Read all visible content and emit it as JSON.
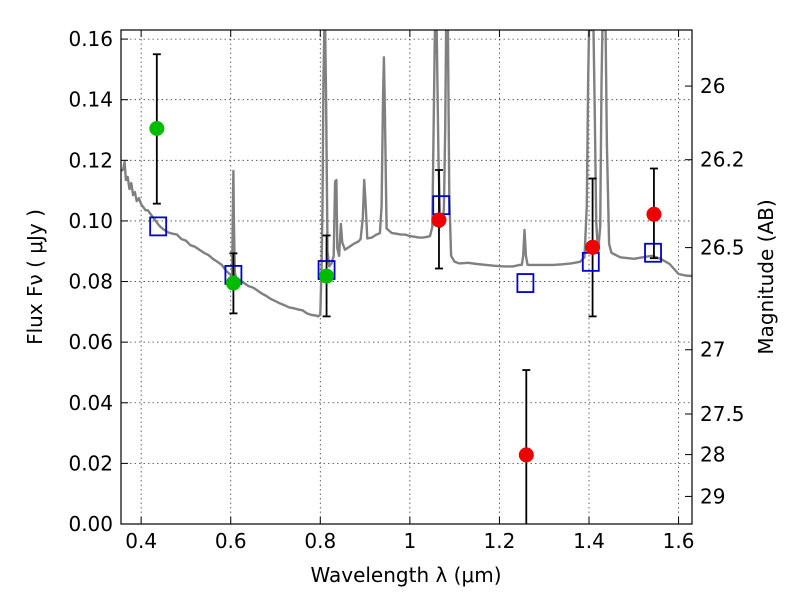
{
  "chart_data": {
    "type": "scatter",
    "title": "",
    "xlabel": "Wavelength  λ (μm)",
    "ylabel": "Flux  Fν  ( μJy )",
    "y2label": "Magnitude (AB)",
    "xlim": [
      0.355,
      1.63
    ],
    "ylim": [
      0.0,
      0.163
    ],
    "grid": true,
    "legend": "none",
    "x_ticks": [
      0.4,
      0.6,
      0.8,
      1.0,
      1.2,
      1.4,
      1.6
    ],
    "x_tick_labels": [
      "0.4",
      "0.6",
      "0.8",
      "1",
      "1.2",
      "1.4",
      "1.6"
    ],
    "y_ticks": [
      0.0,
      0.02,
      0.04,
      0.06,
      0.08,
      0.1,
      0.12,
      0.14,
      0.16
    ],
    "y_tick_labels": [
      "0.00",
      "0.02",
      "0.04",
      "0.06",
      "0.08",
      "0.10",
      "0.12",
      "0.14",
      "0.16"
    ],
    "y2_ticks": [
      {
        "label": "26",
        "flux": 0.1445
      },
      {
        "label": "26.2",
        "flux": 0.1202
      },
      {
        "label": "26.5",
        "flux": 0.0912
      },
      {
        "label": "27",
        "flux": 0.0575
      },
      {
        "label": "27.5",
        "flux": 0.0363
      },
      {
        "label": "28",
        "flux": 0.0229
      },
      {
        "label": "29",
        "flux": 0.0091
      }
    ],
    "colors": {
      "green": "#00bb00",
      "red": "#ee0000",
      "blue": "#0000cc",
      "model": "#808080",
      "errorbar": "#000000"
    },
    "series": [
      {
        "marker": "circle",
        "color": "green",
        "points": [
          {
            "x": 0.435,
            "y": 0.1305,
            "yerr_low": 0.1057,
            "yerr_high": 0.155
          },
          {
            "x": 0.606,
            "y": 0.0795,
            "yerr_low": 0.0695,
            "yerr_high": 0.0893
          },
          {
            "x": 0.814,
            "y": 0.0818,
            "yerr_low": 0.0685,
            "yerr_high": 0.0952
          }
        ]
      },
      {
        "marker": "circle",
        "color": "red",
        "points": [
          {
            "x": 1.065,
            "y": 0.1003,
            "yerr_low": 0.0843,
            "yerr_high": 0.1168
          },
          {
            "x": 1.26,
            "y": 0.0228,
            "yerr_low": 0.0,
            "yerr_high": 0.0508
          },
          {
            "x": 1.408,
            "y": 0.0913,
            "yerr_low": 0.0685,
            "yerr_high": 0.114
          },
          {
            "x": 1.545,
            "y": 0.1022,
            "yerr_low": 0.0877,
            "yerr_high": 0.1173
          }
        ]
      },
      {
        "marker": "open-square",
        "color": "blue",
        "points": [
          {
            "x": 0.438,
            "y": 0.0982
          },
          {
            "x": 0.606,
            "y": 0.0822
          },
          {
            "x": 0.814,
            "y": 0.0838
          },
          {
            "x": 1.07,
            "y": 0.1052
          },
          {
            "x": 1.258,
            "y": 0.0795
          },
          {
            "x": 1.404,
            "y": 0.0865
          },
          {
            "x": 1.543,
            "y": 0.0895
          }
        ]
      },
      {
        "type": "line",
        "color": "model",
        "points": [
          [
            0.355,
            0.1165
          ],
          [
            0.36,
            0.117
          ],
          [
            0.363,
            0.1195
          ],
          [
            0.366,
            0.1135
          ],
          [
            0.37,
            0.1145
          ],
          [
            0.374,
            0.1105
          ],
          [
            0.378,
            0.1125
          ],
          [
            0.382,
            0.1085
          ],
          [
            0.386,
            0.1095
          ],
          [
            0.39,
            0.1065
          ],
          [
            0.395,
            0.1075
          ],
          [
            0.4,
            0.1055
          ],
          [
            0.405,
            0.1045
          ],
          [
            0.41,
            0.1035
          ],
          [
            0.415,
            0.1035
          ],
          [
            0.42,
            0.1025
          ],
          [
            0.425,
            0.1015
          ],
          [
            0.43,
            0.1005
          ],
          [
            0.435,
            0.0995
          ],
          [
            0.44,
            0.0985
          ],
          [
            0.445,
            0.0978
          ],
          [
            0.45,
            0.0972
          ],
          [
            0.46,
            0.0962
          ],
          [
            0.47,
            0.0958
          ],
          [
            0.48,
            0.0955
          ],
          [
            0.49,
            0.094
          ],
          [
            0.5,
            0.0935
          ],
          [
            0.51,
            0.092
          ],
          [
            0.52,
            0.0915
          ],
          [
            0.53,
            0.0905
          ],
          [
            0.54,
            0.0895
          ],
          [
            0.55,
            0.0888
          ],
          [
            0.56,
            0.0875
          ],
          [
            0.57,
            0.0865
          ],
          [
            0.58,
            0.0855
          ],
          [
            0.59,
            0.0835
          ],
          [
            0.6,
            0.0822
          ],
          [
            0.603,
            0.0818
          ],
          [
            0.605,
            0.108
          ],
          [
            0.606,
            0.1165
          ],
          [
            0.607,
            0.1
          ],
          [
            0.609,
            0.083
          ],
          [
            0.612,
            0.0812
          ],
          [
            0.62,
            0.0805
          ],
          [
            0.63,
            0.0795
          ],
          [
            0.64,
            0.0785
          ],
          [
            0.65,
            0.078
          ],
          [
            0.66,
            0.077
          ],
          [
            0.67,
            0.076
          ],
          [
            0.68,
            0.0752
          ],
          [
            0.69,
            0.0742
          ],
          [
            0.7,
            0.0735
          ],
          [
            0.71,
            0.0728
          ],
          [
            0.72,
            0.0722
          ],
          [
            0.73,
            0.0715
          ],
          [
            0.74,
            0.0712
          ],
          [
            0.75,
            0.0708
          ],
          [
            0.76,
            0.0705
          ],
          [
            0.77,
            0.0695
          ],
          [
            0.78,
            0.069
          ],
          [
            0.79,
            0.0688
          ],
          [
            0.795,
            0.0685
          ],
          [
            0.8,
            0.069
          ],
          [
            0.803,
            0.085
          ],
          [
            0.805,
            0.105
          ],
          [
            0.807,
            0.145
          ],
          [
            0.809,
            0.163
          ],
          [
            0.811,
            0.163
          ],
          [
            0.813,
            0.14
          ],
          [
            0.816,
            0.09
          ],
          [
            0.82,
            0.085
          ],
          [
            0.825,
            0.086
          ],
          [
            0.83,
            0.0885
          ],
          [
            0.833,
            0.113
          ],
          [
            0.836,
            0.1135
          ],
          [
            0.838,
            0.091
          ],
          [
            0.842,
            0.0885
          ],
          [
            0.846,
            0.099
          ],
          [
            0.849,
            0.093
          ],
          [
            0.855,
            0.0905
          ],
          [
            0.865,
            0.0915
          ],
          [
            0.875,
            0.0925
          ],
          [
            0.885,
            0.0932
          ],
          [
            0.89,
            0.094
          ],
          [
            0.895,
            0.101
          ],
          [
            0.898,
            0.1135
          ],
          [
            0.901,
            0.1065
          ],
          [
            0.905,
            0.0942
          ],
          [
            0.915,
            0.0945
          ],
          [
            0.925,
            0.0955
          ],
          [
            0.933,
            0.096
          ],
          [
            0.937,
            0.105
          ],
          [
            0.94,
            0.14
          ],
          [
            0.942,
            0.154
          ],
          [
            0.944,
            0.138
          ],
          [
            0.948,
            0.0975
          ],
          [
            0.96,
            0.096
          ],
          [
            0.97,
            0.0958
          ],
          [
            0.98,
            0.0955
          ],
          [
            0.99,
            0.0955
          ],
          [
            1.0,
            0.095
          ],
          [
            1.01,
            0.0948
          ],
          [
            1.02,
            0.0945
          ],
          [
            1.03,
            0.0945
          ],
          [
            1.04,
            0.0948
          ],
          [
            1.045,
            0.095
          ],
          [
            1.05,
            0.098
          ],
          [
            1.053,
            0.13
          ],
          [
            1.056,
            0.163
          ],
          [
            1.06,
            0.163
          ],
          [
            1.064,
            0.12
          ],
          [
            1.068,
            0.098
          ],
          [
            1.072,
            0.0985
          ],
          [
            1.076,
            0.104
          ],
          [
            1.079,
            0.13
          ],
          [
            1.081,
            0.163
          ],
          [
            1.085,
            0.163
          ],
          [
            1.088,
            0.108
          ],
          [
            1.092,
            0.0885
          ],
          [
            1.1,
            0.0865
          ],
          [
            1.11,
            0.086
          ],
          [
            1.13,
            0.0862
          ],
          [
            1.15,
            0.0858
          ],
          [
            1.17,
            0.0855
          ],
          [
            1.19,
            0.0852
          ],
          [
            1.21,
            0.085
          ],
          [
            1.23,
            0.085
          ],
          [
            1.245,
            0.0855
          ],
          [
            1.25,
            0.0855
          ],
          [
            1.253,
            0.0885
          ],
          [
            1.256,
            0.097
          ],
          [
            1.259,
            0.0885
          ],
          [
            1.263,
            0.0855
          ],
          [
            1.28,
            0.0855
          ],
          [
            1.3,
            0.0855
          ],
          [
            1.32,
            0.0855
          ],
          [
            1.34,
            0.0857
          ],
          [
            1.36,
            0.086
          ],
          [
            1.38,
            0.0865
          ],
          [
            1.39,
            0.088
          ],
          [
            1.395,
            0.105
          ],
          [
            1.398,
            0.145
          ],
          [
            1.4,
            0.163
          ],
          [
            1.41,
            0.163
          ],
          [
            1.413,
            0.135
          ],
          [
            1.416,
            0.1
          ],
          [
            1.42,
            0.0895
          ],
          [
            1.425,
            0.098
          ],
          [
            1.428,
            0.145
          ],
          [
            1.43,
            0.163
          ],
          [
            1.437,
            0.163
          ],
          [
            1.44,
            0.125
          ],
          [
            1.445,
            0.0925
          ],
          [
            1.45,
            0.0895
          ],
          [
            1.47,
            0.088
          ],
          [
            1.5,
            0.0875
          ],
          [
            1.52,
            0.088
          ],
          [
            1.54,
            0.0885
          ],
          [
            1.56,
            0.0875
          ],
          [
            1.58,
            0.0858
          ],
          [
            1.6,
            0.0825
          ],
          [
            1.615,
            0.082
          ],
          [
            1.63,
            0.0818
          ]
        ]
      }
    ]
  }
}
